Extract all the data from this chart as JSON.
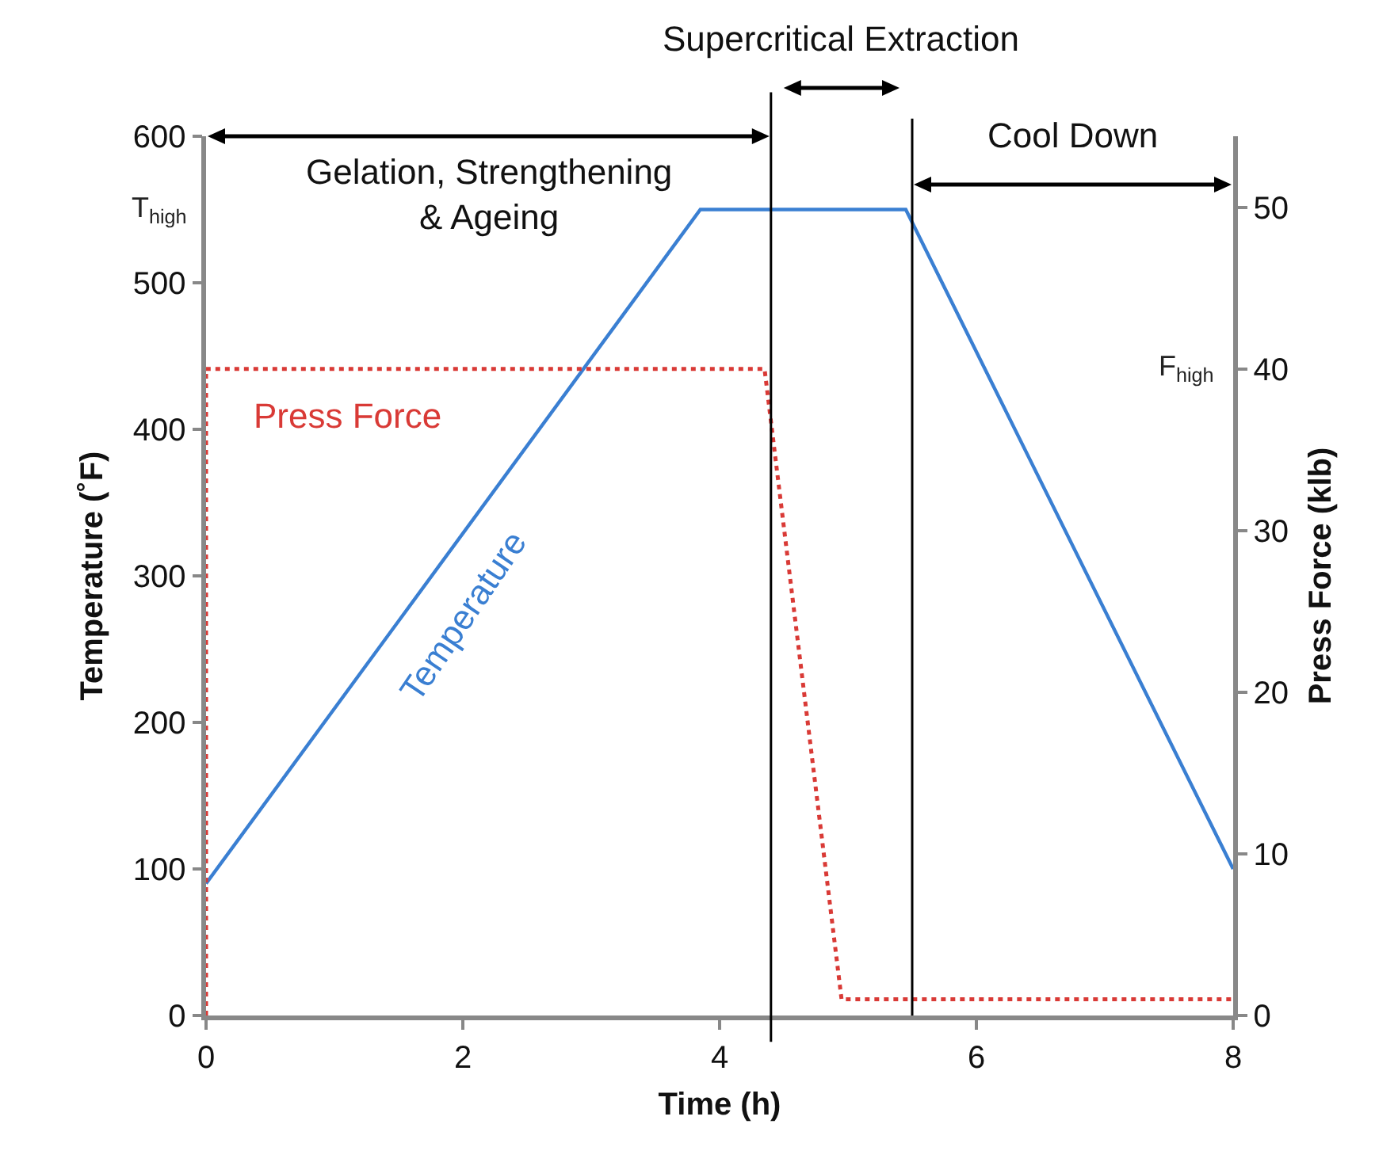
{
  "chart_data": {
    "type": "line",
    "xlabel": "Time (h)",
    "ylabel": "Temperature (˚F)",
    "y2label": "Press Force (klb)",
    "xlim": [
      0,
      8
    ],
    "xticks": [
      0,
      2,
      4,
      6,
      8
    ],
    "ylim": [
      0,
      600
    ],
    "yticks": [
      0,
      100,
      200,
      300,
      400,
      500,
      600
    ],
    "y2lim": [
      0,
      54.4
    ],
    "y2ticks": [
      0,
      10,
      20,
      30,
      40,
      50
    ],
    "series": [
      {
        "name": "Temperature",
        "color": "#3a7fd2",
        "line_style": "solid",
        "x": [
          0,
          3.85,
          5.45,
          8
        ],
        "values": [
          90,
          550,
          550,
          100
        ]
      },
      {
        "name": "Press Force",
        "color": "#d93a36",
        "line_style": "dotted",
        "axis": "y2",
        "x": [
          0,
          0,
          4.35,
          4.95,
          8
        ],
        "values": [
          0,
          40,
          40,
          1,
          1
        ]
      }
    ],
    "ref_lines": [
      {
        "axis": "x",
        "value": 4.4,
        "color": "#000000"
      },
      {
        "axis": "x",
        "value": 5.5,
        "color": "#000000"
      }
    ],
    "annotations": [
      "Gelation, Strengthening\n& Ageing",
      "Supercritical Extraction",
      "Cool Down",
      "T$_{high}$",
      "F$_{high}$"
    ],
    "legend": false,
    "grid": false,
    "marker": "none"
  }
}
